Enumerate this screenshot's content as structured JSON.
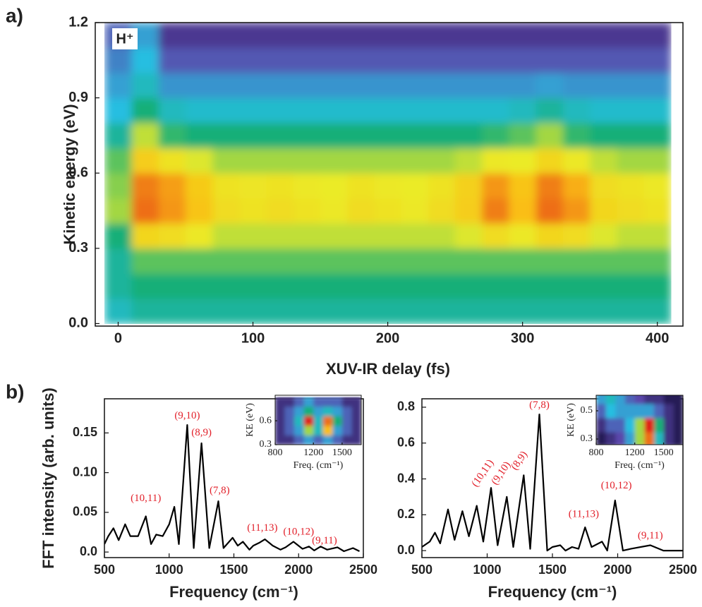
{
  "chart_data": [
    {
      "type": "heatmap",
      "panel_label": "a)",
      "annotation": "H⁺",
      "xlabel": "XUV-IR delay (fs)",
      "ylabel": "Kinetic energy (eV)",
      "xlim": [
        -17,
        419
      ],
      "ylim": [
        -0.01,
        1.2
      ],
      "xticks": [
        0,
        100,
        200,
        300,
        400
      ],
      "yticks": [
        {
          "value": 0,
          "label": "0.0"
        },
        0.3,
        0.6,
        0.9,
        1.2
      ],
      "x": [
        0,
        20,
        40,
        60,
        80,
        100,
        120,
        140,
        160,
        180,
        200,
        220,
        240,
        260,
        280,
        300,
        320,
        340,
        360,
        380,
        400
      ],
      "y": [
        0.05,
        0.15,
        0.25,
        0.35,
        0.45,
        0.55,
        0.65,
        0.75,
        0.85,
        0.95,
        1.05,
        1.15
      ],
      "z": [
        [
          0.4,
          0.45,
          0.45,
          0.45,
          0.45,
          0.45,
          0.45,
          0.45,
          0.45,
          0.45,
          0.45,
          0.45,
          0.45,
          0.45,
          0.45,
          0.45,
          0.45,
          0.45,
          0.45,
          0.45,
          0.45
        ],
        [
          0.45,
          0.5,
          0.5,
          0.5,
          0.5,
          0.5,
          0.5,
          0.5,
          0.5,
          0.5,
          0.5,
          0.5,
          0.5,
          0.5,
          0.5,
          0.5,
          0.5,
          0.5,
          0.5,
          0.5,
          0.5
        ],
        [
          0.45,
          0.55,
          0.55,
          0.55,
          0.55,
          0.55,
          0.55,
          0.55,
          0.55,
          0.55,
          0.55,
          0.55,
          0.55,
          0.55,
          0.55,
          0.55,
          0.55,
          0.55,
          0.55,
          0.55,
          0.55
        ],
        [
          0.5,
          0.72,
          0.7,
          0.66,
          0.62,
          0.62,
          0.62,
          0.62,
          0.62,
          0.62,
          0.62,
          0.62,
          0.62,
          0.64,
          0.7,
          0.66,
          0.72,
          0.7,
          0.64,
          0.62,
          0.62
        ],
        [
          0.6,
          0.9,
          0.85,
          0.78,
          0.7,
          0.68,
          0.7,
          0.68,
          0.66,
          0.7,
          0.68,
          0.66,
          0.7,
          0.75,
          0.88,
          0.8,
          0.9,
          0.85,
          0.72,
          0.7,
          0.68
        ],
        [
          0.58,
          0.88,
          0.84,
          0.76,
          0.68,
          0.67,
          0.68,
          0.66,
          0.65,
          0.68,
          0.66,
          0.65,
          0.68,
          0.74,
          0.85,
          0.78,
          0.88,
          0.82,
          0.7,
          0.68,
          0.66
        ],
        [
          0.55,
          0.75,
          0.68,
          0.64,
          0.6,
          0.6,
          0.6,
          0.6,
          0.6,
          0.6,
          0.6,
          0.6,
          0.6,
          0.62,
          0.66,
          0.65,
          0.72,
          0.66,
          0.62,
          0.6,
          0.6
        ],
        [
          0.45,
          0.62,
          0.52,
          0.5,
          0.5,
          0.5,
          0.5,
          0.5,
          0.5,
          0.5,
          0.5,
          0.5,
          0.5,
          0.5,
          0.52,
          0.55,
          0.6,
          0.52,
          0.5,
          0.5,
          0.5
        ],
        [
          0.35,
          0.5,
          0.4,
          0.38,
          0.38,
          0.38,
          0.38,
          0.38,
          0.38,
          0.38,
          0.38,
          0.38,
          0.38,
          0.38,
          0.38,
          0.4,
          0.45,
          0.4,
          0.38,
          0.38,
          0.38
        ],
        [
          0.3,
          0.4,
          0.28,
          0.28,
          0.28,
          0.28,
          0.28,
          0.28,
          0.28,
          0.28,
          0.28,
          0.28,
          0.28,
          0.28,
          0.28,
          0.28,
          0.3,
          0.28,
          0.28,
          0.28,
          0.28
        ],
        [
          0.25,
          0.35,
          0.18,
          0.18,
          0.18,
          0.18,
          0.18,
          0.18,
          0.18,
          0.18,
          0.18,
          0.18,
          0.18,
          0.18,
          0.18,
          0.18,
          0.18,
          0.18,
          0.18,
          0.18,
          0.18
        ],
        [
          0.2,
          0.3,
          0.12,
          0.12,
          0.12,
          0.12,
          0.12,
          0.12,
          0.12,
          0.12,
          0.12,
          0.12,
          0.12,
          0.12,
          0.12,
          0.12,
          0.12,
          0.12,
          0.12,
          0.12,
          0.12
        ]
      ]
    },
    {
      "type": "line",
      "panel_label": "b)",
      "xlabel": "Frequency (cm⁻¹)",
      "ylabel": "FFT intensity (arb. units)",
      "xlim": [
        500,
        2500
      ],
      "ylim": [
        -0.007,
        0.193
      ],
      "xticks": [
        500,
        1000,
        1500,
        2000,
        2500
      ],
      "yticks": [
        {
          "value": 0,
          "label": "0.0"
        },
        0.05,
        {
          "value": 0.1,
          "label": "0.10"
        },
        0.15
      ],
      "color": "#000000",
      "x": [
        500,
        530,
        570,
        610,
        660,
        700,
        760,
        820,
        860,
        900,
        950,
        1000,
        1040,
        1075,
        1140,
        1190,
        1250,
        1310,
        1380,
        1420,
        1490,
        1530,
        1570,
        1620,
        1650,
        1700,
        1740,
        1800,
        1860,
        1900,
        1960,
        2030,
        2080,
        2120,
        2170,
        2220,
        2300,
        2350,
        2420,
        2470
      ],
      "values": [
        0.01,
        0.02,
        0.03,
        0.015,
        0.035,
        0.02,
        0.02,
        0.045,
        0.01,
        0.022,
        0.02,
        0.035,
        0.057,
        0.01,
        0.16,
        0.005,
        0.137,
        0.005,
        0.064,
        0.005,
        0.018,
        0.008,
        0.013,
        0.003,
        0.008,
        0.012,
        0.016,
        0.008,
        0.003,
        0.006,
        0.013,
        0.004,
        0.007,
        0.002,
        0.007,
        0.003,
        0.006,
        0.001,
        0.005,
        0.001
      ],
      "annotations": [
        {
          "text": "(9,10)",
          "x": 1140,
          "y": 0.171,
          "angle": 0
        },
        {
          "text": "(8,9)",
          "x": 1250,
          "y": 0.15,
          "angle": 0
        },
        {
          "text": "(10,11)",
          "x": 820,
          "y": 0.067,
          "angle": 0
        },
        {
          "text": "(7,8)",
          "x": 1390,
          "y": 0.077,
          "angle": 0
        },
        {
          "text": "(11,13)",
          "x": 1720,
          "y": 0.03,
          "angle": 0
        },
        {
          "text": "(10,12)",
          "x": 2000,
          "y": 0.025,
          "angle": 0
        },
        {
          "text": "(9,11)",
          "x": 2200,
          "y": 0.014,
          "angle": 0
        }
      ]
    },
    {
      "type": "line",
      "xlabel": "Frequency (cm⁻¹)",
      "xlim": [
        500,
        2500
      ],
      "ylim": [
        -0.039,
        0.847
      ],
      "xticks": [
        500,
        1000,
        1500,
        2000,
        2500
      ],
      "yticks": [
        {
          "value": 0,
          "label": "0.0"
        },
        0.2,
        0.4,
        0.6,
        0.8
      ],
      "color": "#000000",
      "x": [
        500,
        560,
        600,
        640,
        700,
        750,
        810,
        860,
        920,
        970,
        1030,
        1080,
        1150,
        1200,
        1280,
        1330,
        1400,
        1460,
        1500,
        1560,
        1600,
        1650,
        1700,
        1750,
        1800,
        1880,
        1920,
        1980,
        2040,
        2100,
        2250,
        2350,
        2500
      ],
      "values": [
        0.02,
        0.05,
        0.1,
        0.04,
        0.23,
        0.06,
        0.22,
        0.08,
        0.25,
        0.05,
        0.35,
        0.03,
        0.3,
        0.02,
        0.42,
        0.01,
        0.76,
        0.0,
        0.02,
        0.03,
        0.0,
        0.02,
        0.01,
        0.13,
        0.02,
        0.05,
        0.0,
        0.28,
        0.0,
        0.01,
        0.03,
        0.0,
        0.0
      ],
      "annotations": [
        {
          "text": "(7,8)",
          "x": 1400,
          "y": 0.81,
          "angle": 0
        },
        {
          "text": "(8,9)",
          "x": 1250,
          "y": 0.5,
          "angle": -55
        },
        {
          "text": "(9,10)",
          "x": 1110,
          "y": 0.43,
          "angle": -55
        },
        {
          "text": "(10,11)",
          "x": 970,
          "y": 0.43,
          "angle": -55
        },
        {
          "text": "(11,13)",
          "x": 1740,
          "y": 0.2,
          "angle": 0
        },
        {
          "text": "(10,12)",
          "x": 1990,
          "y": 0.36,
          "angle": 0
        },
        {
          "text": "(9,11)",
          "x": 2250,
          "y": 0.08,
          "angle": 0
        }
      ]
    },
    {
      "type": "heatmap",
      "inset": true,
      "xlabel": "Freq. (cm⁻¹)",
      "ylabel": "KE (eV)",
      "xlim": [
        800,
        1700
      ],
      "ylim": [
        0.3,
        0.92
      ],
      "xticks": [
        800,
        1200,
        1500
      ],
      "yticks": [
        0.3,
        0.6
      ],
      "x": [
        850,
        950,
        1050,
        1150,
        1250,
        1350,
        1450,
        1550,
        1650
      ],
      "y": [
        0.36,
        0.48,
        0.6,
        0.72,
        0.84
      ],
      "z": [
        [
          0.1,
          0.1,
          0.2,
          0.3,
          0.2,
          0.3,
          0.2,
          0.1,
          0.1
        ],
        [
          0.1,
          0.2,
          0.3,
          0.6,
          0.4,
          0.8,
          0.3,
          0.2,
          0.1
        ],
        [
          0.1,
          0.2,
          0.4,
          1.0,
          0.4,
          0.9,
          0.5,
          0.2,
          0.1
        ],
        [
          0.1,
          0.2,
          0.3,
          0.5,
          0.3,
          0.4,
          0.3,
          0.2,
          0.1
        ],
        [
          0.1,
          0.1,
          0.2,
          0.3,
          0.2,
          0.2,
          0.2,
          0.1,
          0.1
        ]
      ]
    },
    {
      "type": "heatmap",
      "inset": true,
      "xlabel": "Freq. (cm⁻¹)",
      "ylabel": "KE (eV)",
      "xlim": [
        800,
        1700
      ],
      "ylim": [
        0.26,
        0.61
      ],
      "xticks": [
        800,
        1200,
        1500
      ],
      "yticks": [
        0.3,
        0.5
      ],
      "x": [
        850,
        950,
        1050,
        1150,
        1250,
        1350,
        1450,
        1550,
        1650
      ],
      "y": [
        0.3,
        0.4,
        0.5,
        0.6
      ],
      "z": [
        [
          0.05,
          0.1,
          0.15,
          0.3,
          0.6,
          0.9,
          0.4,
          0.1,
          0.05
        ],
        [
          0.1,
          0.2,
          0.2,
          0.35,
          0.6,
          1.0,
          0.5,
          0.1,
          0.05
        ],
        [
          0.2,
          0.35,
          0.3,
          0.3,
          0.3,
          0.3,
          0.2,
          0.1,
          0.05
        ],
        [
          0.3,
          0.4,
          0.3,
          0.2,
          0.15,
          0.1,
          0.1,
          0.05,
          0.05
        ]
      ]
    }
  ]
}
